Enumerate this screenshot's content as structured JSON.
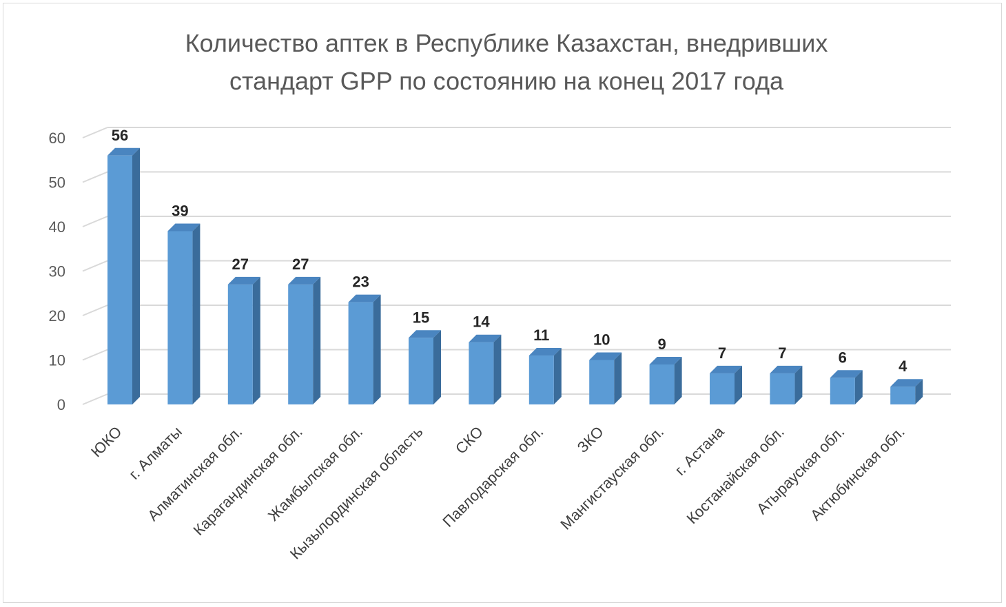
{
  "chart_data": {
    "type": "bar",
    "title_line1": "Количество аптек в Республике Казахстан, внедривших",
    "title_line2": "стандарт GPP по состоянию на конец 2017 года",
    "categories": [
      "ЮКО",
      "г. Алматы",
      "Алматинская обл.",
      "Карагандинская обл.",
      "Жамбылская обл.",
      "Кызылординская область",
      "СКО",
      "Павлодарская обл.",
      "ЗКО",
      "Мангистауская обл.",
      "г. Астана",
      "Костанайская обл.",
      "Атырауская обл.",
      "Актюбинская обл."
    ],
    "values": [
      56,
      39,
      27,
      27,
      23,
      15,
      14,
      11,
      10,
      9,
      7,
      7,
      6,
      4
    ],
    "y_ticks": [
      0,
      10,
      20,
      30,
      40,
      50,
      60
    ],
    "ylim": [
      0,
      60
    ],
    "grid": true,
    "legend": "none",
    "style": "3d-column",
    "colors": {
      "bar_front": "#5B9BD5",
      "bar_side": "#3A6C9B",
      "bar_top": "#4A85C0",
      "grid": "#d9d9d9",
      "text": "#595959"
    }
  }
}
